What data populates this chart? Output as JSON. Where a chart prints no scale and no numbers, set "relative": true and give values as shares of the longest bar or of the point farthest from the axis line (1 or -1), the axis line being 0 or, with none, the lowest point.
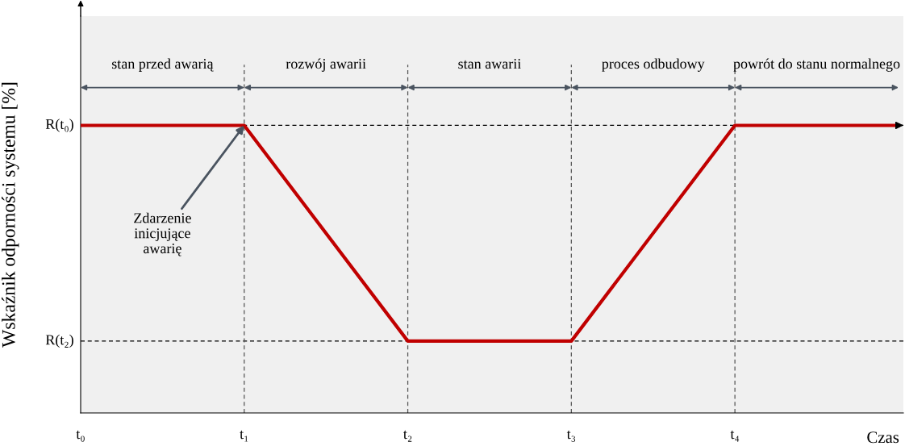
{
  "chart_data": {
    "type": "line",
    "relative": true,
    "categories": [
      "t₀",
      "t₁",
      "t₂",
      "t₃",
      "t₄",
      null
    ],
    "series": [
      {
        "color": "#c00000",
        "values": [
          1,
          1,
          0.25,
          0.25,
          1,
          1
        ]
      }
    ],
    "xlabel": "Czas",
    "ylabel": "Wskaźnik odporności systemu [%]",
    "ref_lines": [
      {
        "axis": "y",
        "value": 1,
        "label": "R(t₀)",
        "line_style": "dashed",
        "color": "#000000"
      },
      {
        "axis": "y",
        "value": 0.25,
        "label": "R(t₂)",
        "line_style": "dashed",
        "color": "#000000"
      },
      {
        "axis": "x",
        "value": "t₁",
        "line_style": "dashed",
        "color": "#555555"
      },
      {
        "axis": "x",
        "value": "t₂",
        "line_style": "dashed",
        "color": "#555555"
      },
      {
        "axis": "x",
        "value": "t₃",
        "line_style": "dashed",
        "color": "#555555"
      },
      {
        "axis": "x",
        "value": "t₄",
        "line_style": "dashed",
        "color": "#555555"
      }
    ],
    "annotations": [
      "stan przed awarią",
      "rozwój awarii",
      "stan awarii",
      "proces odbudowy",
      "powrót do stanu normalnego",
      {
        "text": "Zdarzenie\ninicjujące\nawarię",
        "x": "t₁",
        "y": 1
      }
    ],
    "grid": false,
    "legend": false,
    "marker": "none",
    "line_style": "solid"
  }
}
